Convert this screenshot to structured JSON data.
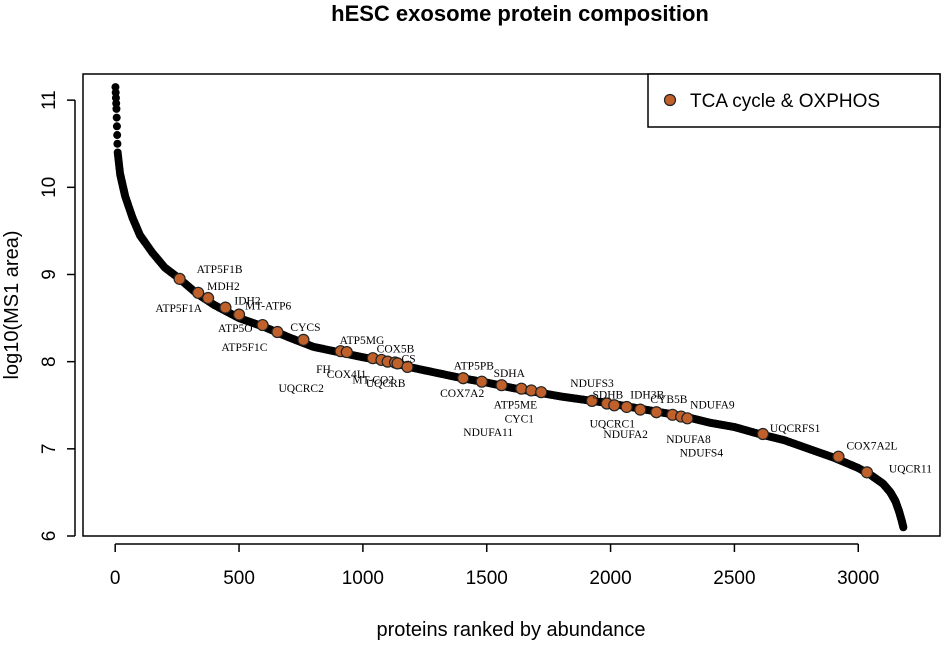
{
  "chart_data": {
    "type": "scatter",
    "title": "hESC exosome protein composition",
    "xlabel": "proteins ranked by abundance",
    "ylabel": "log10(MS1 area)",
    "xlim": [
      -130,
      3330
    ],
    "ylim": [
      6.0,
      11.3
    ],
    "xticks": [
      0,
      500,
      1000,
      1500,
      2000,
      2500,
      3000
    ],
    "yticks": [
      6,
      7,
      8,
      9,
      10,
      11
    ],
    "grid": false,
    "legend": {
      "position": "top-right",
      "entries": [
        "TCA cycle & OXPHOS"
      ]
    },
    "colors": {
      "background_points": "#000000",
      "highlight_points": "#c0602a",
      "highlight_stroke": "#222222"
    },
    "background_curve": {
      "description": "all proteins, black points",
      "x": [
        1,
        5,
        10,
        20,
        40,
        70,
        100,
        150,
        200,
        260,
        330,
        400,
        500,
        600,
        700,
        800,
        900,
        1000,
        1100,
        1200,
        1300,
        1400,
        1500,
        1600,
        1700,
        1800,
        1900,
        2000,
        2100,
        2200,
        2300,
        2400,
        2500,
        2600,
        2700,
        2800,
        2900,
        3000,
        3050,
        3100,
        3130,
        3150,
        3165,
        3175,
        3182
      ],
      "y": [
        11.15,
        10.9,
        10.4,
        10.15,
        9.9,
        9.65,
        9.45,
        9.25,
        9.08,
        8.95,
        8.78,
        8.65,
        8.5,
        8.4,
        8.28,
        8.17,
        8.11,
        8.05,
        8.0,
        7.93,
        7.87,
        7.81,
        7.76,
        7.7,
        7.65,
        7.6,
        7.56,
        7.52,
        7.47,
        7.42,
        7.37,
        7.3,
        7.25,
        7.17,
        7.1,
        7.0,
        6.9,
        6.78,
        6.7,
        6.6,
        6.5,
        6.4,
        6.28,
        6.18,
        6.1
      ]
    },
    "series": [
      {
        "name": "TCA cycle & OXPHOS",
        "points": [
          {
            "label": "ATP5F1B",
            "x": 260,
            "y": 8.95
          },
          {
            "label": "MDH2",
            "x": 335,
            "y": 8.79
          },
          {
            "label": "ATP5F1A",
            "x": 375,
            "y": 8.73
          },
          {
            "label": "IDH2",
            "x": 445,
            "y": 8.62
          },
          {
            "label": "MT-ATP6",
            "x": 500,
            "y": 8.54
          },
          {
            "label": "ATP5O",
            "x": 595,
            "y": 8.42
          },
          {
            "label": "CYCS",
            "x": 655,
            "y": 8.34
          },
          {
            "label": "ATP5F1C",
            "x": 760,
            "y": 8.25
          },
          {
            "label": "ATP5MG",
            "x": 910,
            "y": 8.12
          },
          {
            "label": "FH",
            "x": 935,
            "y": 8.11
          },
          {
            "label": "COX4I1",
            "x": 1040,
            "y": 8.04
          },
          {
            "label": "UQCRC2",
            "x": 1075,
            "y": 8.02
          },
          {
            "label": "COX5B",
            "x": 1100,
            "y": 8.0
          },
          {
            "label": "MT-CO2",
            "x": 1130,
            "y": 7.99
          },
          {
            "label": "CS",
            "x": 1140,
            "y": 7.98
          },
          {
            "label": "UQCRB",
            "x": 1180,
            "y": 7.94
          },
          {
            "label": "COX7A2",
            "x": 1405,
            "y": 7.81
          },
          {
            "label": "ATP5PB",
            "x": 1480,
            "y": 7.77
          },
          {
            "label": "SDHA",
            "x": 1560,
            "y": 7.73
          },
          {
            "label": "ATP5ME",
            "x": 1640,
            "y": 7.69
          },
          {
            "label": "CYC1",
            "x": 1680,
            "y": 7.67
          },
          {
            "label": "NDUFA11",
            "x": 1720,
            "y": 7.65
          },
          {
            "label": "NDUFS3",
            "x": 1925,
            "y": 7.55
          },
          {
            "label": "SDHB",
            "x": 1985,
            "y": 7.52
          },
          {
            "label": "UQCRC1",
            "x": 2015,
            "y": 7.5
          },
          {
            "label": "NDUFA2",
            "x": 2065,
            "y": 7.48
          },
          {
            "label": "IDH3B",
            "x": 2120,
            "y": 7.45
          },
          {
            "label": "CYB5B",
            "x": 2185,
            "y": 7.42
          },
          {
            "label": "NDUFA8",
            "x": 2250,
            "y": 7.39
          },
          {
            "label": "NDUFA9",
            "x": 2285,
            "y": 7.37
          },
          {
            "label": "NDUFS4",
            "x": 2310,
            "y": 7.35
          },
          {
            "label": "UQCRFS1",
            "x": 2615,
            "y": 7.17
          },
          {
            "label": "COX7A2L",
            "x": 2920,
            "y": 6.91
          },
          {
            "label": "UQCR11",
            "x": 3035,
            "y": 6.73
          }
        ]
      }
    ]
  }
}
